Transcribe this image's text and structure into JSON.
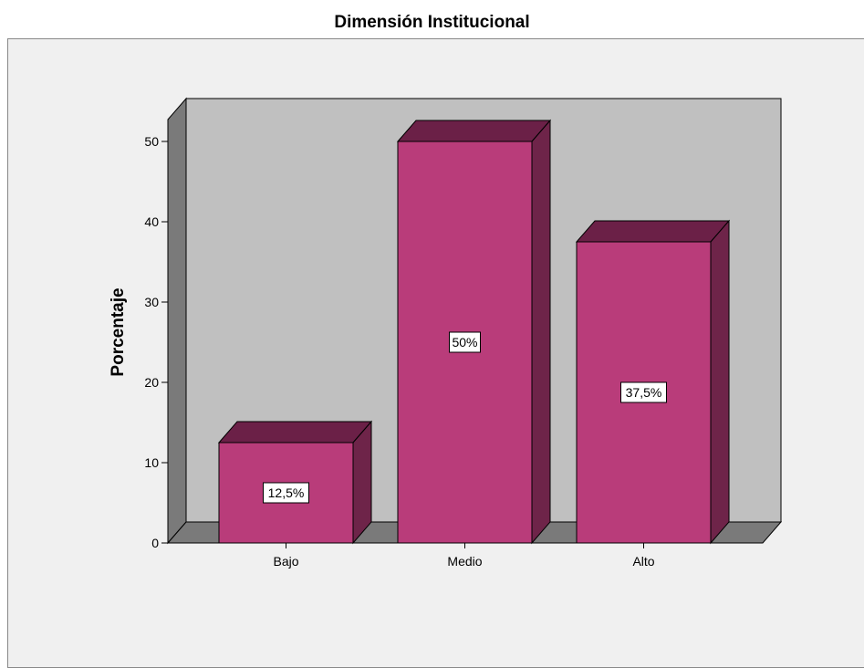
{
  "chart_data": {
    "type": "bar",
    "title": "Dimensión Institucional",
    "xlabel": "",
    "ylabel": "Porcentaje",
    "categories": [
      "Bajo",
      "Medio",
      "Alto"
    ],
    "values": [
      12.5,
      50,
      37.5
    ],
    "data_labels": [
      "12,5%",
      "50%",
      "37,5%"
    ],
    "yticks": [
      "0",
      "10",
      "20",
      "30",
      "40",
      "50"
    ],
    "ylim": [
      0,
      50
    ],
    "three_d": true,
    "grid": false,
    "legend": "none",
    "colors": {
      "bar_front": "#b93c7a",
      "bar_top": "#6b2047",
      "bar_side": "#6e2449",
      "back_wall": "#c0c0c0",
      "left_wall": "#7a7a7a",
      "floor": "#7a7a7a",
      "frame_background": "#f0f0f0"
    }
  }
}
